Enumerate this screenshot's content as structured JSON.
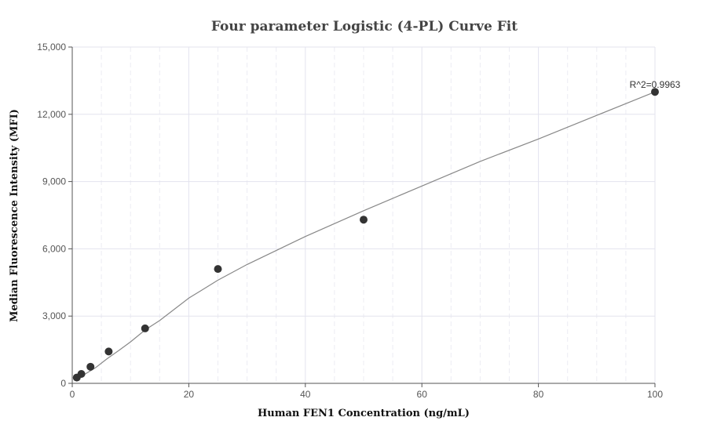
{
  "chart_data": {
    "type": "scatter",
    "title": "Four parameter Logistic (4-PL) Curve Fit",
    "xlabel": "Human FEN1 Concentration (ng/mL)",
    "ylabel": "Median Fluorescence Intensity (MFI)",
    "xlim": [
      0,
      100
    ],
    "ylim": [
      0,
      15000
    ],
    "xticks": [
      0,
      20,
      40,
      60,
      80,
      100
    ],
    "yticks": [
      0,
      3000,
      6000,
      9000,
      12000,
      15000
    ],
    "xtick_labels": [
      "0",
      "20",
      "40",
      "60",
      "80",
      "100"
    ],
    "ytick_labels": [
      "0",
      "3,000",
      "6,000",
      "9,000",
      "12,000",
      "15,000"
    ],
    "grid": true,
    "annotation": "R^2=0.9963",
    "points": {
      "x": [
        0.78,
        1.56,
        3.13,
        6.25,
        12.5,
        25,
        50,
        100
      ],
      "y": [
        260,
        420,
        740,
        1420,
        2450,
        5100,
        7300,
        13000
      ]
    },
    "fit_curve": {
      "x": [
        0.78,
        2,
        4,
        6,
        8,
        10,
        12.5,
        15,
        20,
        25,
        30,
        40,
        50,
        60,
        70,
        80,
        90,
        100
      ],
      "y": [
        210,
        380,
        700,
        1100,
        1470,
        1850,
        2380,
        2800,
        3800,
        4600,
        5300,
        6550,
        7700,
        8800,
        9900,
        10900,
        11950,
        13000
      ]
    },
    "colors": {
      "points": "#333333",
      "curve": "#888888",
      "grid": "#e3e3ee",
      "axis": "#555555"
    }
  }
}
